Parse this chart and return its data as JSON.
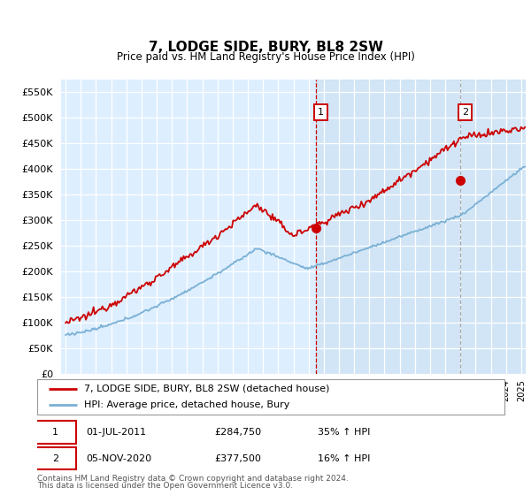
{
  "title": "7, LODGE SIDE, BURY, BL8 2SW",
  "subtitle": "Price paid vs. HM Land Registry's House Price Index (HPI)",
  "legend_entry1": "7, LODGE SIDE, BURY, BL8 2SW (detached house)",
  "legend_entry2": "HPI: Average price, detached house, Bury",
  "footer1": "Contains HM Land Registry data © Crown copyright and database right 2024.",
  "footer2": "This data is licensed under the Open Government Licence v3.0.",
  "red_color": "#cc0000",
  "blue_color": "#7ab0d4",
  "ann1_x": 2011.5,
  "ann1_y": 284750,
  "ann1_date": "01-JUL-2011",
  "ann1_price": "£284,750",
  "ann1_info": "35% ↑ HPI",
  "ann2_x": 2021.0,
  "ann2_y": 377500,
  "ann2_date": "05-NOV-2020",
  "ann2_price": "£377,500",
  "ann2_info": "16% ↑ HPI",
  "ylim": [
    0,
    575000
  ],
  "xlim_left": 1995.0,
  "xlim_right": 2025.3,
  "yticks": [
    0,
    50000,
    100000,
    150000,
    200000,
    250000,
    300000,
    350000,
    400000,
    450000,
    500000,
    550000
  ],
  "bg_color": "#ddeeff",
  "plot_bg": "#ddeeff"
}
